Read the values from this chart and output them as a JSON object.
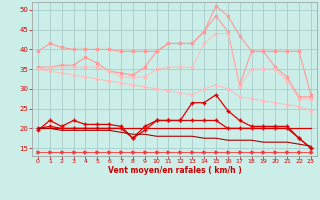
{
  "title": "",
  "xlabel": "Vent moyen/en rafales ( km/h )",
  "xlim": [
    -0.5,
    23.5
  ],
  "ylim": [
    13,
    52
  ],
  "yticks": [
    15,
    20,
    25,
    30,
    35,
    40,
    45,
    50
  ],
  "xticks": [
    0,
    1,
    2,
    3,
    4,
    5,
    6,
    7,
    8,
    9,
    10,
    11,
    12,
    13,
    14,
    15,
    16,
    17,
    18,
    19,
    20,
    21,
    22,
    23
  ],
  "background_color": "#cceee8",
  "grid_color": "#aacccc",
  "series": [
    {
      "label": "salmon_top",
      "color": "#ff9999",
      "linewidth": 0.8,
      "marker": "s",
      "markersize": 1.5,
      "y": [
        39.5,
        41.5,
        40.5,
        40.0,
        40.0,
        40.0,
        40.0,
        39.5,
        39.5,
        39.5,
        39.5,
        41.5,
        41.5,
        41.5,
        44.5,
        51.0,
        48.5,
        43.5,
        39.5,
        39.5,
        39.5,
        39.5,
        39.5,
        28.5
      ]
    },
    {
      "label": "salmon_mid_upper",
      "color": "#ff9999",
      "linewidth": 0.8,
      "marker": "s",
      "markersize": 1.5,
      "y": [
        35.5,
        35.5,
        36.0,
        36.0,
        38.0,
        36.5,
        34.5,
        34.0,
        33.5,
        35.5,
        39.5,
        41.5,
        41.5,
        41.5,
        44.5,
        48.5,
        44.5,
        31.0,
        39.5,
        39.5,
        35.5,
        33.0,
        28.0,
        28.0
      ]
    },
    {
      "label": "salmon_mid_lower",
      "color": "#ffbbbb",
      "linewidth": 0.7,
      "marker": "s",
      "markersize": 1.5,
      "y": [
        35.0,
        35.5,
        35.5,
        35.5,
        35.5,
        35.5,
        34.5,
        33.0,
        33.0,
        33.0,
        35.0,
        35.5,
        35.5,
        35.5,
        41.5,
        44.0,
        44.0,
        30.5,
        35.0,
        35.0,
        35.0,
        32.0,
        27.5,
        27.5
      ]
    },
    {
      "label": "salmon_lower_trend",
      "color": "#ffbbbb",
      "linewidth": 0.7,
      "marker": "s",
      "markersize": 1.2,
      "y": [
        35.0,
        34.5,
        34.0,
        33.5,
        33.0,
        32.5,
        32.0,
        31.5,
        31.0,
        30.5,
        30.0,
        29.5,
        29.0,
        28.5,
        30.0,
        31.0,
        30.0,
        28.0,
        27.5,
        27.0,
        26.5,
        26.0,
        25.5,
        24.5
      ]
    },
    {
      "label": "red_upper",
      "color": "#dd0000",
      "linewidth": 0.9,
      "marker": "+",
      "markersize": 3.0,
      "y": [
        19.5,
        22.0,
        20.5,
        22.0,
        21.0,
        21.0,
        21.0,
        20.5,
        17.5,
        20.5,
        22.0,
        22.0,
        22.0,
        26.5,
        26.5,
        28.5,
        24.5,
        22.0,
        20.5,
        20.5,
        20.5,
        20.5,
        17.5,
        15.0
      ]
    },
    {
      "label": "red_mid",
      "color": "#dd0000",
      "linewidth": 0.9,
      "marker": "+",
      "markersize": 3.0,
      "y": [
        20.0,
        20.5,
        20.0,
        20.0,
        20.0,
        20.0,
        20.0,
        20.0,
        17.5,
        19.5,
        22.0,
        22.0,
        22.0,
        22.0,
        22.0,
        22.0,
        20.0,
        20.0,
        20.0,
        20.0,
        20.0,
        20.0,
        17.5,
        15.0
      ]
    },
    {
      "label": "red_flat1",
      "color": "#dd0000",
      "linewidth": 0.9,
      "marker": null,
      "markersize": 0,
      "y": [
        20.0,
        20.0,
        20.0,
        20.0,
        20.0,
        20.0,
        20.0,
        20.0,
        20.0,
        20.0,
        20.0,
        20.0,
        20.0,
        20.0,
        20.0,
        20.0,
        20.0,
        20.0,
        20.0,
        20.0,
        20.0,
        20.0,
        20.0,
        20.0
      ]
    },
    {
      "label": "dark_red_step",
      "color": "#aa0000",
      "linewidth": 0.8,
      "marker": null,
      "markersize": 0,
      "y": [
        20.0,
        20.0,
        19.5,
        19.5,
        19.5,
        19.5,
        19.5,
        19.0,
        18.5,
        18.5,
        18.0,
        18.0,
        18.0,
        18.0,
        17.5,
        17.5,
        17.0,
        17.0,
        17.0,
        16.5,
        16.5,
        16.5,
        16.0,
        15.5
      ]
    },
    {
      "label": "arrow_line",
      "color": "#ff3333",
      "linewidth": 0.6,
      "marker": ">",
      "markersize": 2.0,
      "y": [
        14.0,
        14.0,
        14.0,
        14.0,
        14.0,
        14.0,
        14.0,
        14.0,
        14.0,
        14.0,
        14.0,
        14.0,
        14.0,
        14.0,
        14.0,
        14.0,
        14.0,
        14.0,
        14.0,
        14.0,
        14.0,
        14.0,
        14.0,
        14.0
      ]
    }
  ]
}
